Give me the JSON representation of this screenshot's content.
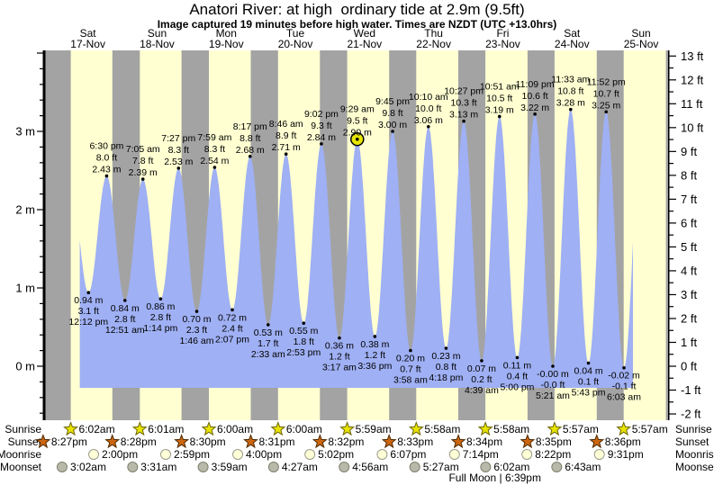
{
  "page": {
    "title": "Anatori River: at high  ordinary tide at 2.9m (9.5ft)",
    "subtitle": "Image captured 19 minutes before high water. Times are NZDT (UTC +13.0hrs)"
  },
  "colors": {
    "day_band": "#ffffd2",
    "night_band": "#a3a3a3",
    "tide_fill": "#9fb0f4",
    "day_label": "#ee2222",
    "marker_fill": "#e6e600",
    "sunrise_star": "#e8e400",
    "sunrise_star_edge": "#6b6400",
    "sunset_star": "#cc6611",
    "sunset_star_edge": "#4d2a00",
    "moonrise_moon": "#ffffd8",
    "moonrise_moon_edge": "#9a9a8a",
    "moonset_moon": "#b9b9a9",
    "moonset_moon_edge": "#80806f"
  },
  "chart_data": {
    "type": "area",
    "title": "Anatori River: at high  ordinary tide at 2.9m (9.5ft)",
    "subtitle": "Image captured 19 minutes before high water. Times are NZDT (UTC +13.0hrs)",
    "ylim_m": [
      -0.69,
      4.03
    ],
    "grid": false,
    "y_axis_left_labels": [
      "0 m",
      "1 m",
      "2 m",
      "3 m"
    ],
    "y_axis_right_labels": [
      "13 ft",
      "12 ft",
      "11 ft",
      "10 ft",
      "9 ft",
      "8 ft",
      "7 ft",
      "6 ft",
      "5 ft",
      "4 ft",
      "3 ft",
      "2 ft",
      "1 ft",
      "0 ft",
      "-1 ft",
      "-2 ft"
    ],
    "days": [
      {
        "dow": "Sat",
        "date": "17-Nov"
      },
      {
        "dow": "Sun",
        "date": "18-Nov"
      },
      {
        "dow": "Mon",
        "date": "19-Nov"
      },
      {
        "dow": "Tue",
        "date": "20-Nov"
      },
      {
        "dow": "Wed",
        "date": "21-Nov"
      },
      {
        "dow": "Thu",
        "date": "22-Nov"
      },
      {
        "dow": "Fri",
        "date": "23-Nov"
      },
      {
        "dow": "Sat",
        "date": "24-Nov"
      },
      {
        "dow": "Sun",
        "date": "25-Nov"
      }
    ],
    "tides": [
      {
        "kind": "L",
        "day": 0,
        "time": "12:12 pm",
        "m": "0.94 m",
        "ft": "3.1 ft"
      },
      {
        "kind": "H",
        "day": 0,
        "time": "6:30 pm",
        "m": "2.43 m",
        "ft": "8.0 ft"
      },
      {
        "kind": "L",
        "day": 1,
        "time": "12:51 am",
        "m": "0.84 m",
        "ft": "2.8 ft"
      },
      {
        "kind": "H",
        "day": 1,
        "time": "7:05 am",
        "m": "2.39 m",
        "ft": "7.8 ft"
      },
      {
        "kind": "L",
        "day": 1,
        "time": "1:14 pm",
        "m": "0.86 m",
        "ft": "2.8 ft"
      },
      {
        "kind": "H",
        "day": 1,
        "time": "7:27 pm",
        "m": "2.53 m",
        "ft": "8.3 ft"
      },
      {
        "kind": "L",
        "day": 2,
        "time": "1:46 am",
        "m": "0.70 m",
        "ft": "2.3 ft"
      },
      {
        "kind": "H",
        "day": 2,
        "time": "7:59 am",
        "m": "2.54 m",
        "ft": "8.3 ft"
      },
      {
        "kind": "L",
        "day": 2,
        "time": "2:07 pm",
        "m": "0.72 m",
        "ft": "2.4 ft"
      },
      {
        "kind": "H",
        "day": 2,
        "time": "8:17 pm",
        "m": "2.68 m",
        "ft": "8.8 ft"
      },
      {
        "kind": "L",
        "day": 3,
        "time": "2:33 am",
        "m": "0.53 m",
        "ft": "1.7 ft"
      },
      {
        "kind": "H",
        "day": 3,
        "time": "8:46 am",
        "m": "2.71 m",
        "ft": "8.9 ft"
      },
      {
        "kind": "L",
        "day": 3,
        "time": "2:53 pm",
        "m": "0.55 m",
        "ft": "1.8 ft"
      },
      {
        "kind": "H",
        "day": 3,
        "time": "9:02 pm",
        "m": "2.84 m",
        "ft": "9.3 ft"
      },
      {
        "kind": "L",
        "day": 4,
        "time": "3:17 am",
        "m": "0.36 m",
        "ft": "1.2 ft"
      },
      {
        "kind": "H",
        "day": 4,
        "time": "9:29 am",
        "m": "2.90 m",
        "ft": "9.5 ft",
        "marker": true
      },
      {
        "kind": "L",
        "day": 4,
        "time": "3:36 pm",
        "m": "0.38 m",
        "ft": "1.2 ft"
      },
      {
        "kind": "H",
        "day": 4,
        "time": "9:45 pm",
        "m": "3.00 m",
        "ft": "9.8 ft"
      },
      {
        "kind": "L",
        "day": 5,
        "time": "3:58 am",
        "m": "0.20 m",
        "ft": "0.7 ft"
      },
      {
        "kind": "H",
        "day": 5,
        "time": "10:10 am",
        "m": "3.06 m",
        "ft": "10.0 ft"
      },
      {
        "kind": "L",
        "day": 5,
        "time": "4:18 pm",
        "m": "0.23 m",
        "ft": "0.8 ft"
      },
      {
        "kind": "H",
        "day": 5,
        "time": "10:27 pm",
        "m": "3.13 m",
        "ft": "10.3 ft"
      },
      {
        "kind": "L",
        "day": 6,
        "time": "4:39 am",
        "m": "0.07 m",
        "ft": "0.2 ft"
      },
      {
        "kind": "H",
        "day": 6,
        "time": "10:51 am",
        "m": "3.19 m",
        "ft": "10.5 ft"
      },
      {
        "kind": "L",
        "day": 6,
        "time": "5:00 pm",
        "m": "0.11 m",
        "ft": "0.4 ft"
      },
      {
        "kind": "H",
        "day": 6,
        "time": "11:09 pm",
        "m": "3.22 m",
        "ft": "10.6 ft"
      },
      {
        "kind": "L",
        "day": 7,
        "time": "5:21 am",
        "m": "-0.00 m",
        "ft": "-0.0 ft"
      },
      {
        "kind": "H",
        "day": 7,
        "time": "11:33 am",
        "m": "3.28 m",
        "ft": "10.8 ft"
      },
      {
        "kind": "L",
        "day": 7,
        "time": "5:43 pm",
        "m": "0.04 m",
        "ft": "0.1 ft"
      },
      {
        "kind": "H",
        "day": 7,
        "time": "11:52 pm",
        "m": "3.25 m",
        "ft": "10.7 ft"
      },
      {
        "kind": "L",
        "day": 8,
        "time": "6:03 am",
        "m": "-0.02 m",
        "ft": "-0.1 ft"
      }
    ],
    "astro_rows": [
      {
        "key": "sunrise",
        "label": "Sunrise",
        "first_day": 0,
        "times": [
          "6:02am",
          "6:01am",
          "6:00am",
          "6:00am",
          "5:59am",
          "5:58am",
          "5:58am",
          "5:57am",
          "5:57am"
        ]
      },
      {
        "key": "sunset",
        "label": "Sunset",
        "first_day": -1,
        "times": [
          "8:27pm",
          "8:28pm",
          "8:30pm",
          "8:31pm",
          "8:32pm",
          "8:33pm",
          "8:34pm",
          "8:35pm",
          "8:36pm"
        ]
      },
      {
        "key": "moonrise",
        "label": "Moonrise",
        "first_day": 0,
        "times": [
          "2:00pm",
          "2:59pm",
          "4:00pm",
          "5:02pm",
          "6:07pm",
          "7:14pm",
          "8:22pm",
          "9:31pm"
        ]
      },
      {
        "key": "moonset",
        "label": "Moonset",
        "first_day": 0,
        "times": [
          "3:02am",
          "3:31am",
          "3:59am",
          "4:27am",
          "4:56am",
          "5:27am",
          "6:02am",
          "6:43am"
        ]
      }
    ],
    "full_moon": {
      "label": "Full Moon",
      "time": "6:39pm",
      "day_index": 6
    }
  }
}
